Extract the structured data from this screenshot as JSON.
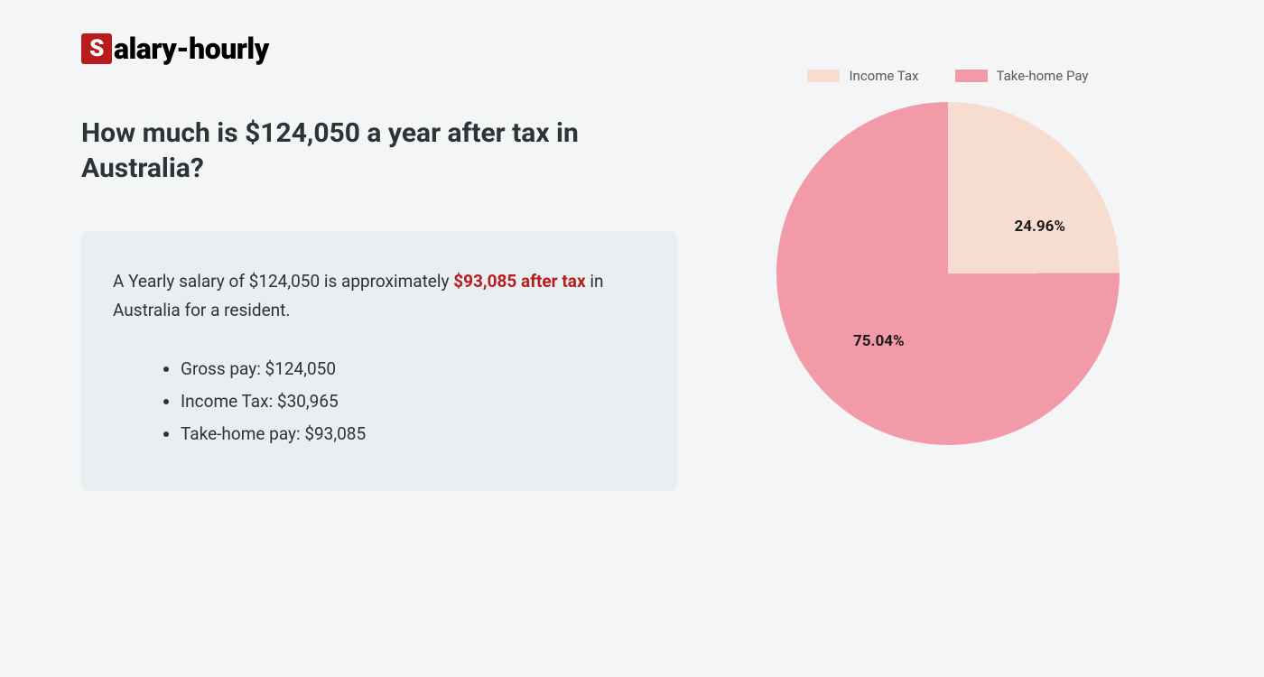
{
  "logo": {
    "icon_letter": "S",
    "text": "alary-hourly",
    "icon_bg": "#b91c1c",
    "icon_fg": "#ffffff"
  },
  "heading": "How much is $124,050 a year after tax in Australia?",
  "card": {
    "summary_prefix": "A Yearly salary of $124,050 is approximately ",
    "summary_highlight": "$93,085 after tax",
    "summary_suffix": " in Australia for a resident.",
    "items": [
      "Gross pay: $124,050",
      "Income Tax: $30,965",
      "Take-home pay: $93,085"
    ],
    "bg_color": "#e9eff1",
    "highlight_color": "#b91c1c",
    "text_color": "#2d3436"
  },
  "chart": {
    "type": "pie",
    "radius": 190,
    "slices": [
      {
        "label": "Income Tax",
        "value": 24.96,
        "display": "24.96%",
        "color": "#f7dcd0"
      },
      {
        "label": "Take-home Pay",
        "value": 75.04,
        "display": "75.04%",
        "color": "#f39aa8"
      }
    ],
    "legend_text_color": "#5a5a5a",
    "label_fontsize": 17,
    "label_fontweight": 700,
    "label_color": "#1a1a1a",
    "background_color": "#f3f5f7"
  }
}
